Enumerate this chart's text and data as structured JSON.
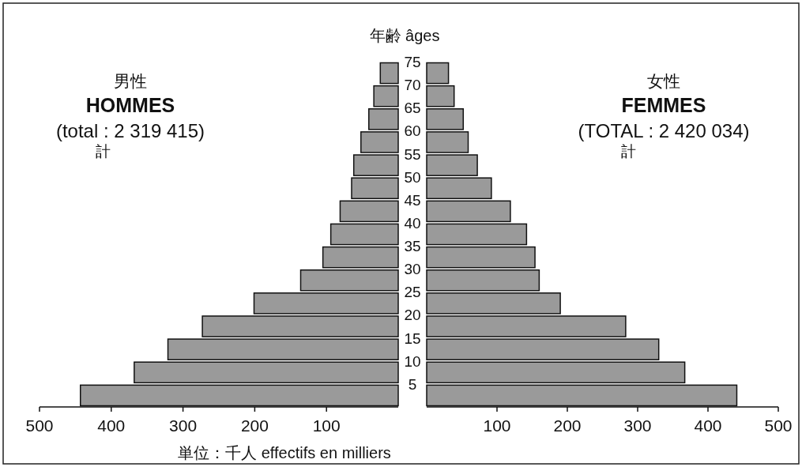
{
  "chart_data": [
    {
      "type": "histogram",
      "orientation": "horizontal",
      "bins": [
        0,
        5,
        10,
        15,
        20,
        25,
        30,
        35,
        40,
        45,
        50,
        55,
        60,
        65,
        70,
        75
      ],
      "values": [
        443,
        368,
        321,
        273,
        201,
        136,
        105,
        94,
        81,
        65,
        62,
        52,
        41,
        34,
        25
      ],
      "color": "#9a9a9a",
      "xlim": [
        500,
        0
      ],
      "xticks": [
        500,
        400,
        300,
        200,
        100
      ],
      "ylim": [
        0,
        75
      ],
      "tick_labels": "x",
      "xlabel": "単位：千人 effectifs en milliers",
      "annotations": [
        "男性",
        "HOMMES",
        "(total : 2 319 415)",
        "計"
      ]
    },
    {
      "type": "histogram",
      "orientation": "horizontal",
      "bins": [
        0,
        5,
        10,
        15,
        20,
        25,
        30,
        35,
        40,
        45,
        50,
        55,
        60,
        65,
        70,
        75
      ],
      "values": [
        441,
        367,
        330,
        283,
        190,
        160,
        154,
        142,
        119,
        92,
        72,
        59,
        52,
        39,
        31
      ],
      "color": "#9a9a9a",
      "xlim": [
        0,
        500
      ],
      "xticks": [
        100,
        200,
        300,
        400,
        500
      ],
      "ylim": [
        0,
        75
      ],
      "yticks": [
        5,
        10,
        15,
        20,
        25,
        30,
        35,
        40,
        45,
        50,
        55,
        60,
        65,
        70,
        75
      ],
      "ylabel": "年齢 âges",
      "annotations": [
        "女性",
        "FEMMES",
        "(TOTAL : 2 420 034)",
        "計"
      ]
    }
  ]
}
